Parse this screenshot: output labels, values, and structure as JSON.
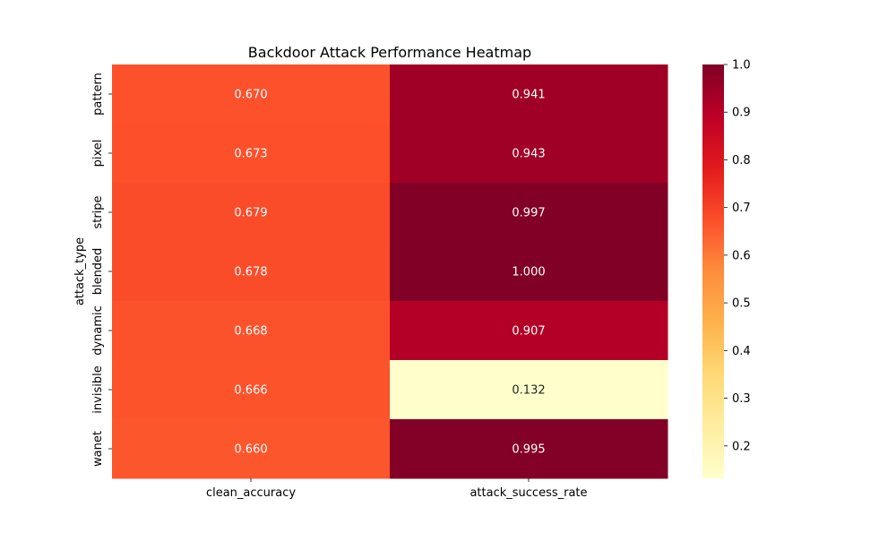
{
  "chart_data": {
    "type": "heatmap",
    "title": "Backdoor Attack Performance Heatmap",
    "xlabel": "",
    "ylabel": "attack_type",
    "x_categories": [
      "clean_accuracy",
      "attack_success_rate"
    ],
    "y_categories": [
      "pattern",
      "pixel",
      "stripe",
      "blended",
      "dynamic",
      "invisible",
      "wanet"
    ],
    "values": [
      [
        0.67,
        0.941
      ],
      [
        0.673,
        0.943
      ],
      [
        0.679,
        0.997
      ],
      [
        0.678,
        1.0
      ],
      [
        0.668,
        0.907
      ],
      [
        0.666,
        0.132
      ],
      [
        0.66,
        0.995
      ]
    ],
    "cell_labels": [
      [
        "0.670",
        "0.941"
      ],
      [
        "0.673",
        "0.943"
      ],
      [
        "0.679",
        "0.997"
      ],
      [
        "0.678",
        "1.000"
      ],
      [
        "0.668",
        "0.907"
      ],
      [
        "0.666",
        "0.132"
      ],
      [
        "0.660",
        "0.995"
      ]
    ],
    "colormap": "YlOrRd",
    "colormap_stops": [
      "#ffffcc",
      "#ffeda0",
      "#fed976",
      "#feb24c",
      "#fd8d3c",
      "#fc4e2a",
      "#e31a1c",
      "#bd0026",
      "#800026"
    ],
    "vmin": 0.132,
    "vmax": 1.0,
    "colorbar_ticks": [
      "0.2",
      "0.3",
      "0.4",
      "0.5",
      "0.6",
      "0.7",
      "0.8",
      "0.9",
      "1.0"
    ],
    "colorbar_tick_values": [
      0.2,
      0.3,
      0.4,
      0.5,
      0.6,
      0.7,
      0.8,
      0.9,
      1.0
    ]
  }
}
